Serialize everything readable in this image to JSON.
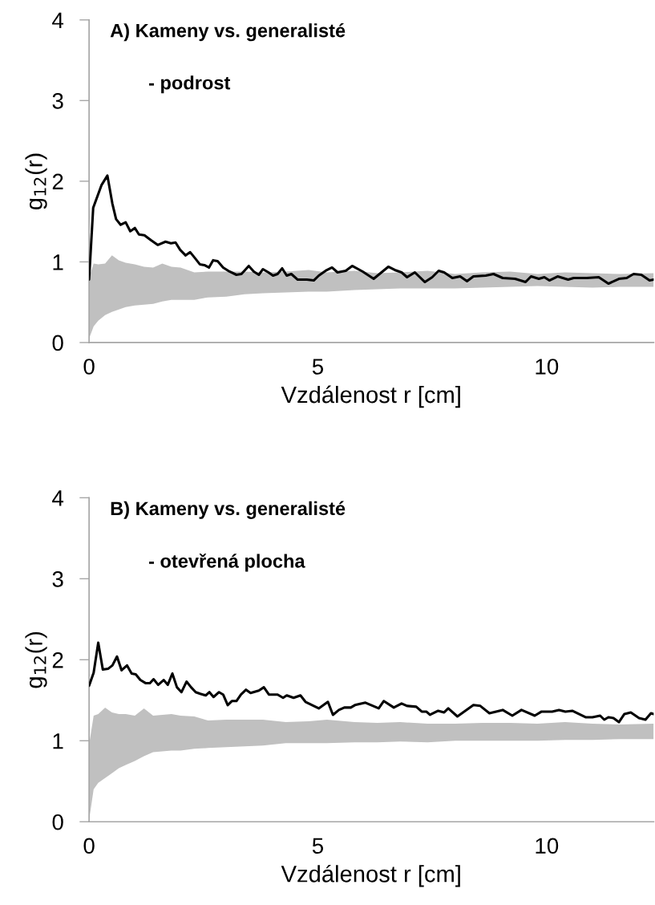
{
  "chart_data": [
    {
      "type": "line",
      "title": "A) Kameny vs. generalisté",
      "subtitle": "- podrost",
      "xlabel": "Vzdálenost r [cm]",
      "ylabel": "g$_{12}$(r)",
      "xlim": [
        0,
        12.34
      ],
      "xticks": [
        0,
        5,
        10
      ],
      "ylim": [
        0,
        4
      ],
      "yticks": [
        0,
        1,
        2,
        3,
        4
      ],
      "series": [
        {
          "type": "area",
          "color": "#c0c0c0",
          "x": [
            0,
            0.1,
            0.2,
            0.35,
            0.5,
            0.65,
            0.8,
            1.0,
            1.2,
            1.4,
            1.6,
            1.8,
            2.0,
            2.3,
            2.6,
            3.0,
            3.4,
            3.8,
            4.3,
            4.8,
            5.2,
            5.8,
            6.3,
            6.8,
            7.4,
            8.0,
            8.6,
            9.2,
            9.8,
            10.4,
            11.0,
            11.6,
            12.34
          ],
          "values": [
            null,
            null,
            null,
            null,
            null,
            null,
            null,
            null,
            null,
            null,
            null,
            null,
            null,
            null,
            null,
            null,
            null,
            null,
            null,
            null,
            null,
            null,
            null,
            null,
            null,
            null,
            null,
            null,
            null,
            null,
            null,
            null,
            null
          ],
          "lower": [
            0.05,
            0.2,
            0.27,
            0.34,
            0.38,
            0.41,
            0.44,
            0.46,
            0.47,
            0.48,
            0.51,
            0.53,
            0.53,
            0.53,
            0.56,
            0.57,
            0.6,
            0.61,
            0.62,
            0.63,
            0.63,
            0.65,
            0.66,
            0.67,
            0.67,
            0.67,
            0.68,
            0.69,
            0.7,
            0.69,
            0.68,
            0.69,
            0.69
          ],
          "upper": [
            0.8,
            0.98,
            0.97,
            0.98,
            1.08,
            1.02,
            0.99,
            0.97,
            0.94,
            0.93,
            0.98,
            0.94,
            0.93,
            0.87,
            0.88,
            0.88,
            0.88,
            0.87,
            0.88,
            0.9,
            0.87,
            0.89,
            0.86,
            0.87,
            0.89,
            0.85,
            0.87,
            0.88,
            0.85,
            0.87,
            0.86,
            0.85,
            0.86
          ]
        },
        {
          "color": "#000000",
          "x": [
            0,
            0.09,
            0.27,
            0.4,
            0.51,
            0.59,
            0.69,
            0.8,
            0.9,
            1.0,
            1.09,
            1.21,
            1.35,
            1.5,
            1.67,
            1.79,
            1.89,
            1.99,
            2.11,
            2.21,
            2.31,
            2.42,
            2.52,
            2.62,
            2.71,
            2.81,
            2.93,
            3.07,
            3.22,
            3.33,
            3.49,
            3.6,
            3.71,
            3.8,
            3.92,
            4.02,
            4.12,
            4.22,
            4.32,
            4.42,
            4.56,
            4.64,
            4.76,
            4.91,
            5.02,
            5.17,
            5.31,
            5.43,
            5.61,
            5.75,
            5.98,
            6.22,
            6.54,
            6.68,
            6.83,
            6.95,
            7.12,
            7.34,
            7.5,
            7.64,
            7.76,
            7.94,
            8.11,
            8.26,
            8.4,
            8.67,
            8.84,
            9.04,
            9.31,
            9.54,
            9.66,
            9.83,
            9.95,
            10.06,
            10.24,
            10.47,
            10.59,
            10.88,
            11.14,
            11.35,
            11.58,
            11.75,
            11.9,
            12.07,
            12.25,
            12.34
          ],
          "values": [
            0.78,
            1.67,
            1.95,
            2.07,
            1.72,
            1.53,
            1.46,
            1.49,
            1.38,
            1.42,
            1.34,
            1.33,
            1.27,
            1.21,
            1.25,
            1.23,
            1.24,
            1.15,
            1.08,
            1.12,
            1.05,
            0.97,
            0.96,
            0.93,
            1.02,
            1.01,
            0.93,
            0.88,
            0.84,
            0.85,
            0.95,
            0.88,
            0.84,
            0.91,
            0.87,
            0.83,
            0.85,
            0.92,
            0.83,
            0.85,
            0.78,
            0.78,
            0.78,
            0.77,
            0.83,
            0.89,
            0.93,
            0.87,
            0.89,
            0.95,
            0.88,
            0.79,
            0.94,
            0.9,
            0.87,
            0.81,
            0.87,
            0.75,
            0.81,
            0.89,
            0.87,
            0.8,
            0.82,
            0.76,
            0.82,
            0.83,
            0.85,
            0.8,
            0.79,
            0.75,
            0.82,
            0.79,
            0.81,
            0.77,
            0.82,
            0.78,
            0.8,
            0.8,
            0.81,
            0.73,
            0.79,
            0.8,
            0.85,
            0.84,
            0.77,
            0.78
          ]
        }
      ]
    },
    {
      "type": "line",
      "title": "B) Kameny vs. generalisté",
      "subtitle": "- otevřená plocha",
      "xlabel": "Vzdálenost r [cm]",
      "ylabel": "g$_{12}$(r)",
      "xlim": [
        0,
        12.34
      ],
      "xticks": [
        0,
        5,
        10
      ],
      "ylim": [
        0,
        4
      ],
      "yticks": [
        0,
        1,
        2,
        3,
        4
      ],
      "series": [
        {
          "type": "area",
          "color": "#c0c0c0",
          "x": [
            0,
            0.1,
            0.2,
            0.35,
            0.5,
            0.65,
            0.8,
            1.0,
            1.2,
            1.4,
            1.6,
            1.8,
            2.0,
            2.3,
            2.6,
            3.0,
            3.4,
            3.8,
            4.3,
            4.8,
            5.2,
            5.8,
            6.3,
            6.8,
            7.4,
            8.0,
            8.6,
            9.2,
            9.8,
            10.4,
            11.0,
            11.6,
            12.34
          ],
          "values": [
            null,
            null,
            null,
            null,
            null,
            null,
            null,
            null,
            null,
            null,
            null,
            null,
            null,
            null,
            null,
            null,
            null,
            null,
            null,
            null,
            null,
            null,
            null,
            null,
            null,
            null,
            null,
            null,
            null,
            null,
            null,
            null,
            null
          ],
          "lower": [
            0.02,
            0.4,
            0.48,
            0.54,
            0.6,
            0.66,
            0.7,
            0.75,
            0.81,
            0.86,
            0.87,
            0.88,
            0.88,
            0.9,
            0.91,
            0.92,
            0.93,
            0.94,
            0.97,
            0.97,
            0.97,
            0.98,
            0.98,
            0.99,
            0.98,
            1.0,
            1.0,
            1.0,
            1.0,
            1.01,
            1.01,
            1.02,
            1.02
          ],
          "upper": [
            0.95,
            1.31,
            1.33,
            1.41,
            1.35,
            1.33,
            1.33,
            1.31,
            1.4,
            1.31,
            1.32,
            1.33,
            1.31,
            1.3,
            1.25,
            1.26,
            1.26,
            1.26,
            1.23,
            1.24,
            1.26,
            1.23,
            1.22,
            1.23,
            1.21,
            1.21,
            1.22,
            1.22,
            1.21,
            1.23,
            1.21,
            1.2,
            1.21
          ]
        },
        {
          "color": "#000000",
          "x": [
            0,
            0.1,
            0.2,
            0.3,
            0.42,
            0.51,
            0.61,
            0.71,
            0.83,
            0.93,
            1.02,
            1.12,
            1.24,
            1.33,
            1.41,
            1.51,
            1.63,
            1.72,
            1.82,
            1.92,
            2.02,
            2.13,
            2.23,
            2.33,
            2.43,
            2.55,
            2.63,
            2.72,
            2.84,
            2.93,
            3.03,
            3.12,
            3.22,
            3.32,
            3.43,
            3.53,
            3.71,
            3.82,
            3.93,
            4.12,
            4.24,
            4.32,
            4.47,
            4.62,
            4.73,
            4.91,
            5.02,
            5.22,
            5.33,
            5.46,
            5.58,
            5.72,
            5.81,
            6.04,
            6.33,
            6.44,
            6.66,
            6.83,
            6.95,
            7.15,
            7.27,
            7.37,
            7.45,
            7.63,
            7.76,
            7.85,
            8.05,
            8.4,
            8.55,
            8.75,
            9.04,
            9.25,
            9.45,
            9.74,
            9.89,
            10.12,
            10.27,
            10.41,
            10.56,
            10.85,
            11.0,
            11.17,
            11.26,
            11.35,
            11.46,
            11.58,
            11.7,
            11.84,
            12.02,
            12.16,
            12.28,
            12.34
          ],
          "values": [
            1.68,
            1.84,
            2.21,
            1.88,
            1.89,
            1.93,
            2.04,
            1.87,
            1.93,
            1.83,
            1.82,
            1.75,
            1.71,
            1.71,
            1.76,
            1.69,
            1.75,
            1.69,
            1.83,
            1.66,
            1.6,
            1.73,
            1.66,
            1.6,
            1.58,
            1.56,
            1.6,
            1.54,
            1.6,
            1.57,
            1.44,
            1.49,
            1.49,
            1.57,
            1.63,
            1.59,
            1.62,
            1.66,
            1.57,
            1.57,
            1.53,
            1.56,
            1.53,
            1.56,
            1.48,
            1.43,
            1.4,
            1.48,
            1.32,
            1.38,
            1.41,
            1.41,
            1.44,
            1.47,
            1.4,
            1.49,
            1.41,
            1.46,
            1.43,
            1.42,
            1.36,
            1.36,
            1.32,
            1.37,
            1.35,
            1.4,
            1.3,
            1.44,
            1.43,
            1.34,
            1.38,
            1.31,
            1.38,
            1.31,
            1.36,
            1.36,
            1.38,
            1.36,
            1.37,
            1.29,
            1.29,
            1.31,
            1.26,
            1.29,
            1.28,
            1.23,
            1.33,
            1.35,
            1.28,
            1.26,
            1.34,
            1.33
          ]
        }
      ]
    }
  ]
}
